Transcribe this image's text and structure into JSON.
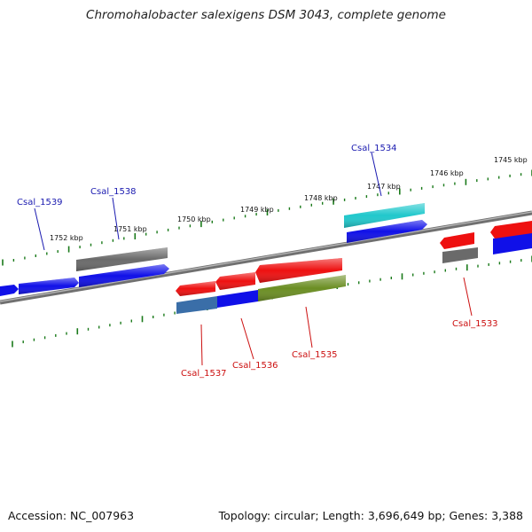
{
  "title": "Chromohalobacter salexigens DSM 3043, complete genome",
  "footer": {
    "accession": "Accession: NC_007963",
    "summary": "Topology: circular; Length: 3,696,649 bp; Genes: 3,388"
  },
  "colors": {
    "forward_label": "#1a1ab0",
    "reverse_label": "#cc1010",
    "backbone": "#808080",
    "tick": "#1a7a1a",
    "gene_blue": "#1010e8",
    "gene_red": "#ee1010",
    "gene_gray": "#6a6a6a",
    "gene_cyan": "#20c8cc",
    "gene_olive": "#6b8e23",
    "gene_steel": "#3a6ea8"
  },
  "scale": {
    "kbp_labels": [
      "1752 kbp",
      "1751 kbp",
      "1750 kbp",
      "1749 kbp",
      "1748 kbp",
      "1747 kbp",
      "1746 kbp",
      "1745 kbp"
    ]
  },
  "labels": {
    "forward": [
      "Csal_1539",
      "Csal_1538",
      "Csal_1534"
    ],
    "reverse": [
      "Csal_1537",
      "Csal_1536",
      "Csal_1535",
      "Csal_1533"
    ]
  }
}
